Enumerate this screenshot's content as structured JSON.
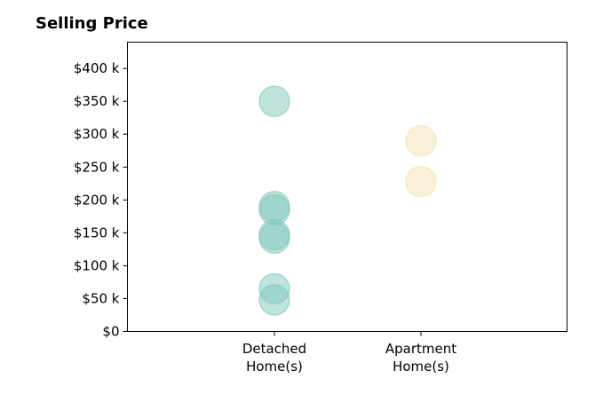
{
  "chart_data": {
    "type": "scatter",
    "title": "Selling Price",
    "xlabel": "",
    "ylabel": "",
    "categories": [
      [
        "Detached",
        "Home(s)"
      ],
      [
        "Apartment",
        "Home(s)"
      ]
    ],
    "ylim": [
      0,
      440000
    ],
    "yticks": [
      0,
      50000,
      100000,
      150000,
      200000,
      250000,
      300000,
      350000,
      400000
    ],
    "ytick_labels": [
      "$0",
      "$50 k",
      "$100 k",
      "$150 k",
      "$200 k",
      "$250 k",
      "$300 k",
      "$350 k",
      "$400 k"
    ],
    "series": [
      {
        "category": 0,
        "color": "#7fc7bb",
        "values": [
          350000,
          190000,
          185000,
          147000,
          142000,
          65000,
          48000
        ]
      },
      {
        "category": 1,
        "color": "#f5dfb0",
        "values": [
          290000,
          228000
        ]
      }
    ],
    "grid": false,
    "legend": "none"
  }
}
